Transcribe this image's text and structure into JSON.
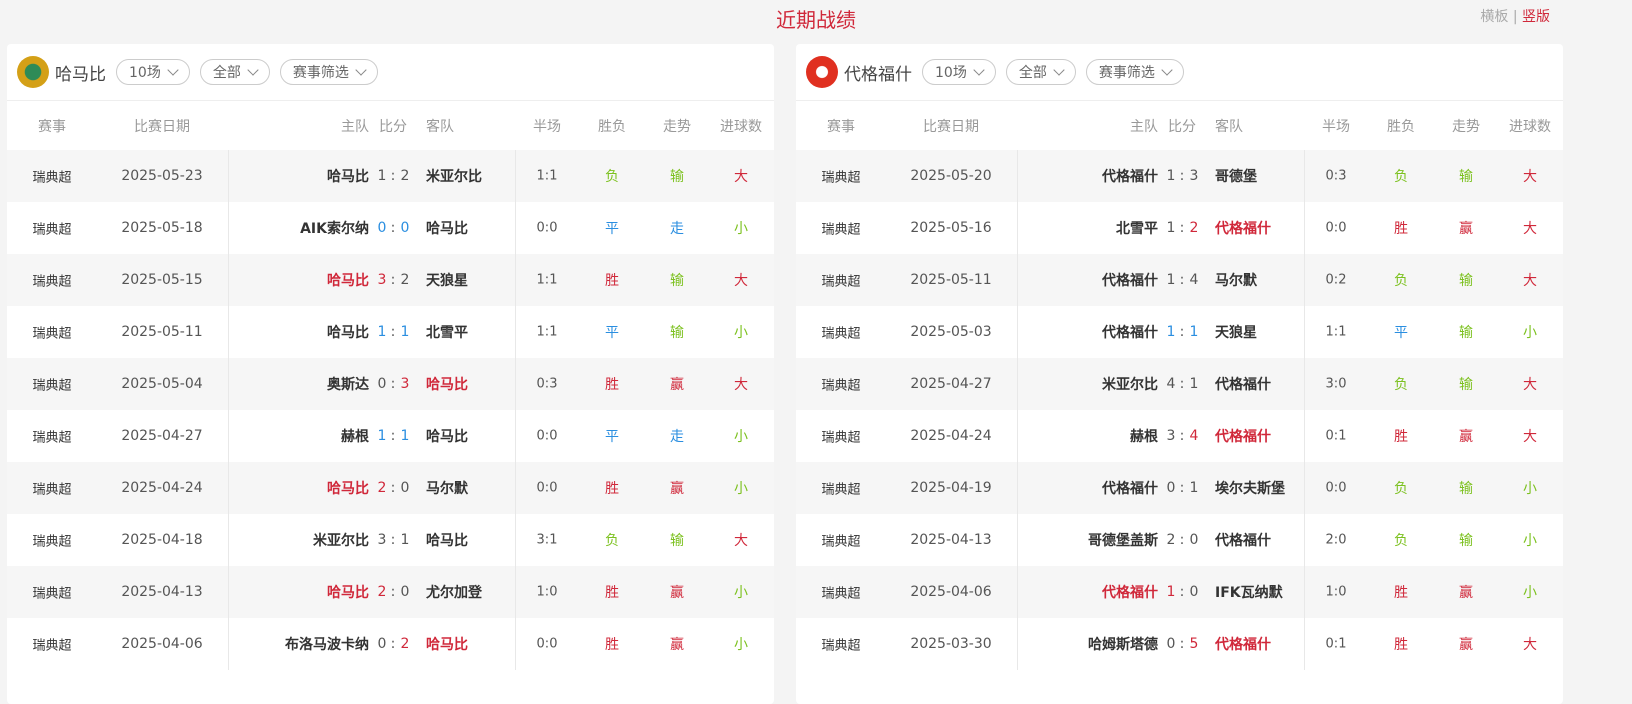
{
  "title": "近期战绩",
  "view_switch": {
    "horizontal": "横板",
    "sep": "|",
    "vertical": "竖版"
  },
  "headers": {
    "league": "赛事",
    "date": "比赛日期",
    "home": "主队",
    "score": "比分",
    "away": "客队",
    "half": "半场",
    "result": "胜负",
    "trend": "走势",
    "goals": "进球数"
  },
  "colors": {
    "win": "#d0283a",
    "loss": "#7cc11f",
    "draw": "#2a8ee0"
  },
  "panels": [
    {
      "team": "哈马比",
      "logo": "hammarby-crest-icon",
      "filters": {
        "count": "10场",
        "scope": "全部",
        "league": "赛事筛选"
      },
      "rows": [
        {
          "league": "瑞典超",
          "date": "2025-05-23",
          "home": "哈马比",
          "hs": "1",
          "as": "2",
          "away": "米亚尔比",
          "half": "1:1",
          "result": "负",
          "trend": "输",
          "goals": "大"
        },
        {
          "league": "瑞典超",
          "date": "2025-05-18",
          "home": "AIK索尔纳",
          "hs": "0",
          "as": "0",
          "away": "哈马比",
          "half": "0:0",
          "result": "平",
          "trend": "走",
          "goals": "小"
        },
        {
          "league": "瑞典超",
          "date": "2025-05-15",
          "home": "哈马比",
          "hs": "3",
          "as": "2",
          "away": "天狼星",
          "half": "1:1",
          "result": "胜",
          "trend": "输",
          "goals": "大",
          "hl": "home"
        },
        {
          "league": "瑞典超",
          "date": "2025-05-11",
          "home": "哈马比",
          "hs": "1",
          "as": "1",
          "away": "北雪平",
          "half": "1:1",
          "result": "平",
          "trend": "输",
          "goals": "小"
        },
        {
          "league": "瑞典超",
          "date": "2025-05-04",
          "home": "奥斯达",
          "hs": "0",
          "as": "3",
          "away": "哈马比",
          "half": "0:3",
          "result": "胜",
          "trend": "赢",
          "goals": "大",
          "hl": "away"
        },
        {
          "league": "瑞典超",
          "date": "2025-04-27",
          "home": "赫根",
          "hs": "1",
          "as": "1",
          "away": "哈马比",
          "half": "0:0",
          "result": "平",
          "trend": "走",
          "goals": "小"
        },
        {
          "league": "瑞典超",
          "date": "2025-04-24",
          "home": "哈马比",
          "hs": "2",
          "as": "0",
          "away": "马尔默",
          "half": "0:0",
          "result": "胜",
          "trend": "赢",
          "goals": "小",
          "hl": "home"
        },
        {
          "league": "瑞典超",
          "date": "2025-04-18",
          "home": "米亚尔比",
          "hs": "3",
          "as": "1",
          "away": "哈马比",
          "half": "3:1",
          "result": "负",
          "trend": "输",
          "goals": "大"
        },
        {
          "league": "瑞典超",
          "date": "2025-04-13",
          "home": "哈马比",
          "hs": "2",
          "as": "0",
          "away": "尤尔加登",
          "half": "1:0",
          "result": "胜",
          "trend": "赢",
          "goals": "小",
          "hl": "home"
        },
        {
          "league": "瑞典超",
          "date": "2025-04-06",
          "home": "布洛马波卡纳",
          "hs": "0",
          "as": "2",
          "away": "哈马比",
          "half": "0:0",
          "result": "胜",
          "trend": "赢",
          "goals": "小",
          "hl": "away"
        }
      ]
    },
    {
      "team": "代格福什",
      "logo": "degerfors-crest-icon",
      "filters": {
        "count": "10场",
        "scope": "全部",
        "league": "赛事筛选"
      },
      "rows": [
        {
          "league": "瑞典超",
          "date": "2025-05-20",
          "home": "代格福什",
          "hs": "1",
          "as": "3",
          "away": "哥德堡",
          "half": "0:3",
          "result": "负",
          "trend": "输",
          "goals": "大"
        },
        {
          "league": "瑞典超",
          "date": "2025-05-16",
          "home": "北雪平",
          "hs": "1",
          "as": "2",
          "away": "代格福什",
          "half": "0:0",
          "result": "胜",
          "trend": "赢",
          "goals": "大",
          "hl": "away"
        },
        {
          "league": "瑞典超",
          "date": "2025-05-11",
          "home": "代格福什",
          "hs": "1",
          "as": "4",
          "away": "马尔默",
          "half": "0:2",
          "result": "负",
          "trend": "输",
          "goals": "大"
        },
        {
          "league": "瑞典超",
          "date": "2025-05-03",
          "home": "代格福什",
          "hs": "1",
          "as": "1",
          "away": "天狼星",
          "half": "1:1",
          "result": "平",
          "trend": "输",
          "goals": "小"
        },
        {
          "league": "瑞典超",
          "date": "2025-04-27",
          "home": "米亚尔比",
          "hs": "4",
          "as": "1",
          "away": "代格福什",
          "half": "3:0",
          "result": "负",
          "trend": "输",
          "goals": "大"
        },
        {
          "league": "瑞典超",
          "date": "2025-04-24",
          "home": "赫根",
          "hs": "3",
          "as": "4",
          "away": "代格福什",
          "half": "0:1",
          "result": "胜",
          "trend": "赢",
          "goals": "大",
          "hl": "away"
        },
        {
          "league": "瑞典超",
          "date": "2025-04-19",
          "home": "代格福什",
          "hs": "0",
          "as": "1",
          "away": "埃尔夫斯堡",
          "half": "0:0",
          "result": "负",
          "trend": "输",
          "goals": "小"
        },
        {
          "league": "瑞典超",
          "date": "2025-04-13",
          "home": "哥德堡盖斯",
          "hs": "2",
          "as": "0",
          "away": "代格福什",
          "half": "2:0",
          "result": "负",
          "trend": "输",
          "goals": "小"
        },
        {
          "league": "瑞典超",
          "date": "2025-04-06",
          "home": "代格福什",
          "hs": "1",
          "as": "0",
          "away": "IFK瓦纳默",
          "half": "1:0",
          "result": "胜",
          "trend": "赢",
          "goals": "小",
          "hl": "home"
        },
        {
          "league": "瑞典超",
          "date": "2025-03-30",
          "home": "哈姆斯塔德",
          "hs": "0",
          "as": "5",
          "away": "代格福什",
          "half": "0:1",
          "result": "胜",
          "trend": "赢",
          "goals": "大",
          "hl": "away"
        }
      ]
    }
  ]
}
